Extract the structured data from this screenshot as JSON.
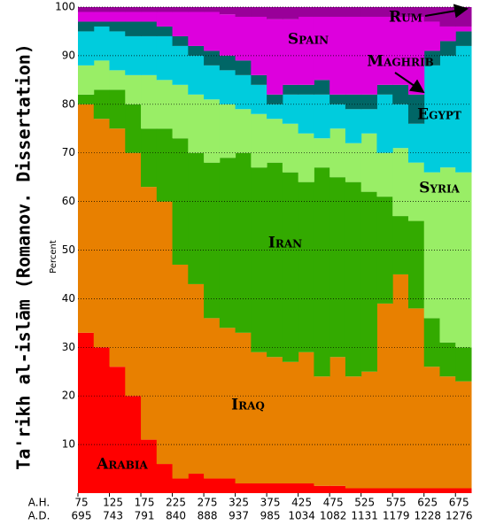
{
  "chart_data": {
    "type": "stacked_step",
    "y_label": "Ta'rikh al-islām (Romanov. Dissertation)",
    "y_unit_label": "Percent",
    "x_label": "A.H.",
    "x2_label": "A.D.",
    "x": [
      75,
      100,
      125,
      150,
      175,
      200,
      225,
      250,
      275,
      300,
      325,
      350,
      375,
      400,
      425,
      450,
      475,
      500,
      525,
      550,
      575,
      600,
      625,
      650,
      675
    ],
    "xlim": [
      75,
      700
    ],
    "xticks": [
      75,
      125,
      175,
      225,
      275,
      325,
      375,
      425,
      475,
      525,
      575,
      625,
      675
    ],
    "x2ticks": [
      695,
      743,
      791,
      840,
      888,
      937,
      985,
      1034,
      1082,
      1131,
      1179,
      1228,
      1276
    ],
    "ylim": [
      0,
      100
    ],
    "yticks": [
      10,
      20,
      30,
      40,
      50,
      60,
      70,
      80,
      90,
      100
    ],
    "grid": true,
    "series": [
      {
        "name": "Arabia",
        "color": "#ff0000",
        "values": [
          33,
          30,
          26,
          20,
          11,
          6,
          3,
          4,
          3,
          3,
          2,
          2,
          2,
          2,
          2,
          1.5,
          1.5,
          1,
          1,
          1,
          1,
          1,
          1,
          1,
          1
        ]
      },
      {
        "name": "Iraq",
        "color": "#e88000",
        "values": [
          47,
          47,
          49,
          50,
          52,
          54,
          44,
          39,
          33,
          31,
          31,
          27,
          26,
          25,
          27,
          22.5,
          26.5,
          23,
          24,
          38,
          44,
          37,
          25,
          23,
          22
        ]
      },
      {
        "name": "Iran",
        "color": "#33aa00",
        "values": [
          2,
          6,
          8,
          10,
          12,
          15,
          26,
          27,
          32,
          35,
          37,
          38,
          40,
          39,
          35,
          43,
          37,
          40,
          37,
          22,
          12,
          18,
          10,
          7,
          7
        ]
      },
      {
        "name": "Syria",
        "color": "#99ee66",
        "values": [
          6,
          6,
          4,
          6,
          11,
          10,
          11,
          12,
          13,
          11,
          9,
          11,
          9,
          10,
          10,
          6,
          10,
          8,
          12,
          9,
          14,
          12,
          30,
          36,
          36
        ]
      },
      {
        "name": "Egypt",
        "color": "#00ccdd",
        "values": [
          7,
          7,
          8,
          8,
          8,
          9,
          8,
          8,
          7,
          7,
          7,
          6,
          3,
          6,
          8,
          9,
          5,
          7,
          5,
          12,
          9,
          8,
          22,
          23,
          26
        ]
      },
      {
        "name": "Maghrib",
        "color": "#006666",
        "values": [
          2,
          1,
          2,
          3,
          3,
          2,
          2,
          2,
          3,
          3,
          3,
          2,
          2,
          2,
          2,
          3,
          2,
          3,
          3,
          2,
          4,
          6,
          3,
          3,
          3
        ]
      },
      {
        "name": "Spain",
        "color": "#dd00dd",
        "values": [
          2,
          2,
          2,
          2,
          2,
          3,
          5,
          7,
          8,
          8.5,
          9,
          12,
          15.5,
          13.5,
          14,
          13,
          16,
          16,
          16,
          14,
          14,
          16,
          6,
          3,
          1
        ]
      },
      {
        "name": "Rum",
        "color": "#990099",
        "values": [
          1,
          1,
          1,
          1,
          1,
          1,
          1,
          1,
          1,
          1.5,
          2,
          2,
          2.5,
          2.5,
          2,
          2,
          2,
          2,
          2,
          2,
          2,
          2,
          3,
          4,
          4
        ]
      }
    ]
  }
}
